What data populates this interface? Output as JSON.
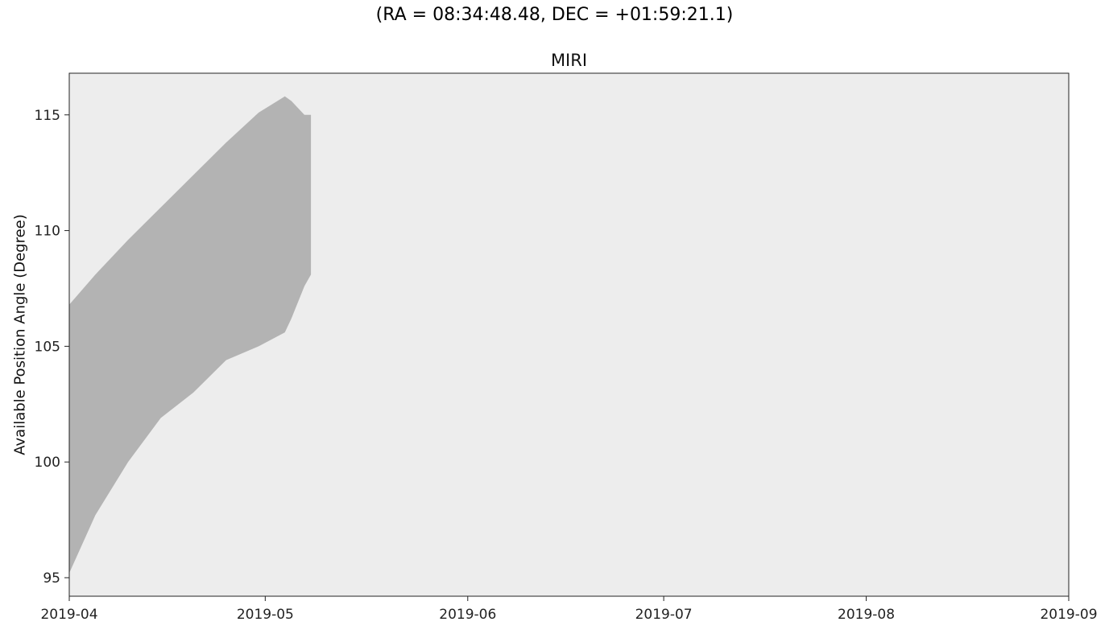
{
  "suptitle": "(RA = 08:34:48.48, DEC = +01:59:21.1)",
  "chart_data": {
    "type": "area",
    "title": "MIRI",
    "xlabel": "",
    "ylabel": "Available Position Angle (Degree)",
    "xlim": [
      "2019-04-01",
      "2019-09-01"
    ],
    "ylim": [
      94.2,
      116.8
    ],
    "x_ticks": [
      "2019-04",
      "2019-05",
      "2019-06",
      "2019-07",
      "2019-08",
      "2019-09"
    ],
    "y_ticks": [
      95,
      100,
      105,
      110,
      115
    ],
    "background_color": "#ededed",
    "fill_color": "#b3b3b3",
    "grid": false,
    "series": [
      {
        "x": [
          "2019-04-01",
          "2019-04-05",
          "2019-04-10",
          "2019-04-15",
          "2019-04-20",
          "2019-04-25",
          "2019-04-30",
          "2019-05-04",
          "2019-05-05",
          "2019-05-06",
          "2019-05-07",
          "2019-05-08"
        ],
        "upper": [
          106.8,
          108.1,
          109.6,
          111.0,
          112.4,
          113.8,
          115.1,
          115.8,
          115.6,
          115.3,
          115.0,
          115.0
        ],
        "lower": [
          95.2,
          97.7,
          100.0,
          101.9,
          103.0,
          104.4,
          105.0,
          105.6,
          106.2,
          106.9,
          107.6,
          108.1
        ]
      }
    ]
  }
}
